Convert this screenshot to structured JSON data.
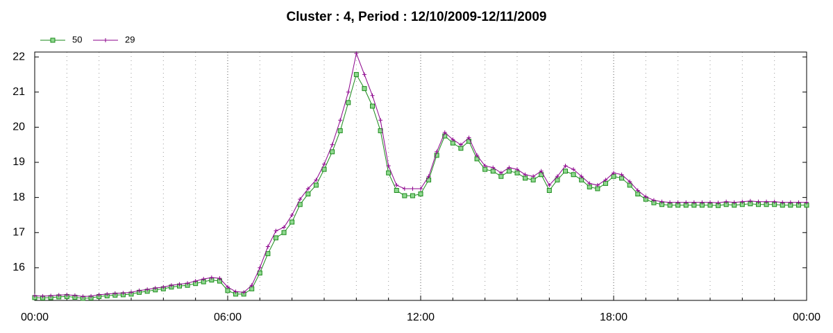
{
  "chart_data": {
    "type": "line",
    "title": "Cluster : 4, Period : 12/10/2009-12/11/2009",
    "x": [
      0,
      0.25,
      0.5,
      0.75,
      1,
      1.25,
      1.5,
      1.75,
      2,
      2.25,
      2.5,
      2.75,
      3,
      3.25,
      3.5,
      3.75,
      4,
      4.25,
      4.5,
      4.75,
      5,
      5.25,
      5.5,
      5.75,
      6,
      6.25,
      6.5,
      6.75,
      7,
      7.25,
      7.5,
      7.75,
      8,
      8.25,
      8.5,
      8.75,
      9,
      9.25,
      9.5,
      9.75,
      10,
      10.25,
      10.5,
      10.75,
      11,
      11.25,
      11.5,
      11.75,
      12,
      12.25,
      12.5,
      12.75,
      13,
      13.25,
      13.5,
      13.75,
      14,
      14.25,
      14.5,
      14.75,
      15,
      15.25,
      15.5,
      15.75,
      16,
      16.25,
      16.5,
      16.75,
      17,
      17.25,
      17.5,
      17.75,
      18,
      18.25,
      18.5,
      18.75,
      19,
      19.25,
      19.5,
      19.75,
      20,
      20.25,
      20.5,
      20.75,
      21,
      21.25,
      21.5,
      21.75,
      22,
      22.25,
      22.5,
      22.75,
      23,
      23.25,
      23.5,
      23.75,
      24
    ],
    "series": [
      {
        "name": "50",
        "color": "#1a8a1a",
        "fill": "#8fd88f",
        "marker": "square",
        "values": [
          15.15,
          15.14,
          15.15,
          15.17,
          15.18,
          15.16,
          15.13,
          15.14,
          15.18,
          15.2,
          15.22,
          15.23,
          15.25,
          15.3,
          15.33,
          15.37,
          15.4,
          15.45,
          15.48,
          15.5,
          15.55,
          15.6,
          15.65,
          15.62,
          15.35,
          15.25,
          15.25,
          15.4,
          15.85,
          16.4,
          16.85,
          17.0,
          17.3,
          17.8,
          18.1,
          18.35,
          18.8,
          19.3,
          19.9,
          20.7,
          21.5,
          21.1,
          20.6,
          19.9,
          18.7,
          18.2,
          18.05,
          18.05,
          18.1,
          18.5,
          19.2,
          19.75,
          19.55,
          19.4,
          19.6,
          19.1,
          18.8,
          18.75,
          18.6,
          18.75,
          18.7,
          18.55,
          18.5,
          18.65,
          18.2,
          18.5,
          18.75,
          18.65,
          18.5,
          18.3,
          18.25,
          18.4,
          18.6,
          18.55,
          18.35,
          18.1,
          17.95,
          17.85,
          17.8,
          17.78,
          17.78,
          17.78,
          17.78,
          17.78,
          17.78,
          17.77,
          17.8,
          17.78,
          17.8,
          17.82,
          17.8,
          17.8,
          17.8,
          17.78,
          17.78,
          17.78,
          17.78
        ]
      },
      {
        "name": "29",
        "color": "#8b008b",
        "marker": "plus",
        "values": [
          15.2,
          15.19,
          15.2,
          15.22,
          15.23,
          15.21,
          15.18,
          15.19,
          15.23,
          15.25,
          15.27,
          15.28,
          15.3,
          15.35,
          15.38,
          15.42,
          15.45,
          15.5,
          15.53,
          15.56,
          15.62,
          15.68,
          15.72,
          15.7,
          15.45,
          15.32,
          15.3,
          15.5,
          16.0,
          16.6,
          17.05,
          17.15,
          17.5,
          17.95,
          18.25,
          18.5,
          18.95,
          19.5,
          20.2,
          21.0,
          22.1,
          21.5,
          20.9,
          20.2,
          18.9,
          18.35,
          18.25,
          18.25,
          18.25,
          18.6,
          19.3,
          19.85,
          19.65,
          19.5,
          19.7,
          19.2,
          18.9,
          18.85,
          18.7,
          18.85,
          18.8,
          18.65,
          18.6,
          18.75,
          18.35,
          18.6,
          18.9,
          18.8,
          18.6,
          18.4,
          18.35,
          18.5,
          18.7,
          18.65,
          18.45,
          18.2,
          18.02,
          17.92,
          17.88,
          17.86,
          17.86,
          17.86,
          17.86,
          17.86,
          17.86,
          17.85,
          17.88,
          17.86,
          17.88,
          17.9,
          17.88,
          17.88,
          17.88,
          17.86,
          17.86,
          17.86,
          17.86
        ]
      }
    ],
    "xlim": [
      0,
      24
    ],
    "xticks": [
      {
        "value": 0,
        "label": "00:00"
      },
      {
        "value": 6,
        "label": "06:00"
      },
      {
        "value": 12,
        "label": "12:00"
      },
      {
        "value": 18,
        "label": "18:00"
      },
      {
        "value": 24,
        "label": "00:00"
      }
    ],
    "xminorticks": [
      1,
      2,
      3,
      4,
      5,
      7,
      8,
      9,
      10,
      11,
      13,
      14,
      15,
      16,
      17,
      19,
      20,
      21,
      22,
      23
    ],
    "ylim": [
      15.07,
      22.14
    ],
    "yticks": [
      16,
      17,
      18,
      19,
      20,
      21,
      22
    ],
    "grid": true,
    "legend": "top-left"
  }
}
